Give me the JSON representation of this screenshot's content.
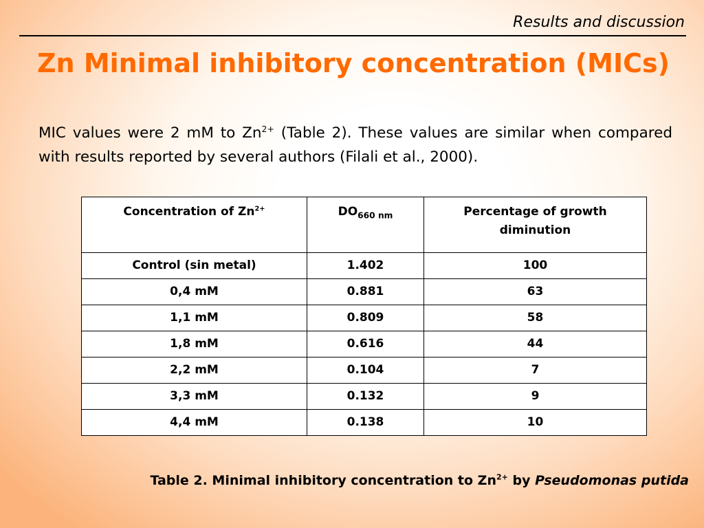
{
  "header": {
    "section": "Results and discussion",
    "title": "Zn Minimal inhibitory concentration (MICs)"
  },
  "intro": {
    "before": "MIC values were 2 mM to Zn",
    "sup": "2+",
    "after": " (Table 2). These values are similar when compared with results reported by several authors (Filali et al., 2000)."
  },
  "table": {
    "headers": {
      "concentration": "Concentration of Zn",
      "concentration_sup": "2+",
      "do": "DO",
      "do_sub": "660 nm",
      "percentage": "Percentage of growth diminution"
    },
    "rows": [
      {
        "concentration": "Control (sin metal)",
        "do": "1.402",
        "percentage": "100"
      },
      {
        "concentration": "0,4 mM",
        "do": "0.881",
        "percentage": "63"
      },
      {
        "concentration": "1,1 mM",
        "do": "0.809",
        "percentage": "58"
      },
      {
        "concentration": "1,8 mM",
        "do": "0.616",
        "percentage": "44"
      },
      {
        "concentration": "2,2 mM",
        "do": "0.104",
        "percentage": "7"
      },
      {
        "concentration": "3,3 mM",
        "do": "0.132",
        "percentage": "9"
      },
      {
        "concentration": "4,4 mM",
        "do": "0.138",
        "percentage": "10"
      }
    ]
  },
  "caption": {
    "text": "Table 2. Minimal inhibitory concentration to Zn",
    "sup": "2+",
    "by": " by ",
    "organism": "Pseudomonas putida"
  }
}
